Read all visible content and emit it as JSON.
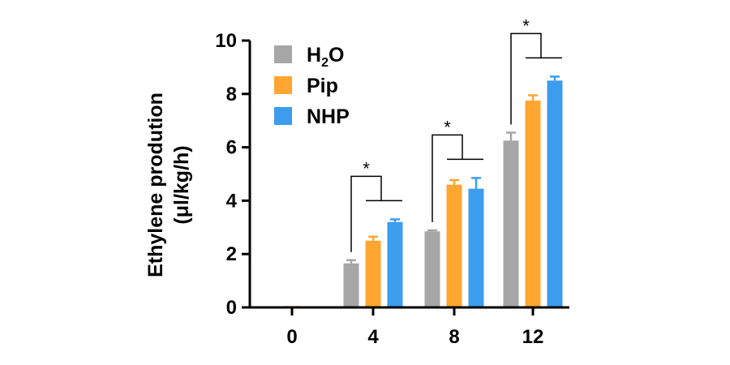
{
  "chart_data": {
    "type": "bar",
    "title": "",
    "xlabel": "",
    "ylabel_line1": "Ethylene prodution",
    "ylabel_line2": "(μl/kg/h)",
    "ylim": [
      0,
      10
    ],
    "yticks": [
      0,
      2,
      4,
      6,
      8,
      10
    ],
    "categories": [
      "0",
      "4",
      "8",
      "12"
    ],
    "legend_position": "top-left",
    "series": [
      {
        "name_main": "H",
        "name_sub": "2",
        "name_tail": "O",
        "color": "#a6a6a6",
        "values": [
          0.0,
          1.65,
          2.85,
          6.25
        ],
        "errors": [
          0.0,
          0.12,
          0.04,
          0.3
        ]
      },
      {
        "name_main": "Pip",
        "name_sub": "",
        "name_tail": "",
        "color": "#ffa630",
        "values": [
          0.05,
          2.5,
          4.6,
          7.75
        ],
        "errors": [
          0.0,
          0.15,
          0.17,
          0.2
        ]
      },
      {
        "name_main": "NHP",
        "name_sub": "",
        "name_tail": "",
        "color": "#3c9cee",
        "values": [
          0.04,
          3.2,
          4.45,
          8.5
        ],
        "errors": [
          0.0,
          0.1,
          0.4,
          0.15
        ]
      }
    ],
    "significance": [
      {
        "category": "4",
        "label": "*"
      },
      {
        "category": "8",
        "label": "*"
      },
      {
        "category": "12",
        "label": "*"
      }
    ]
  }
}
